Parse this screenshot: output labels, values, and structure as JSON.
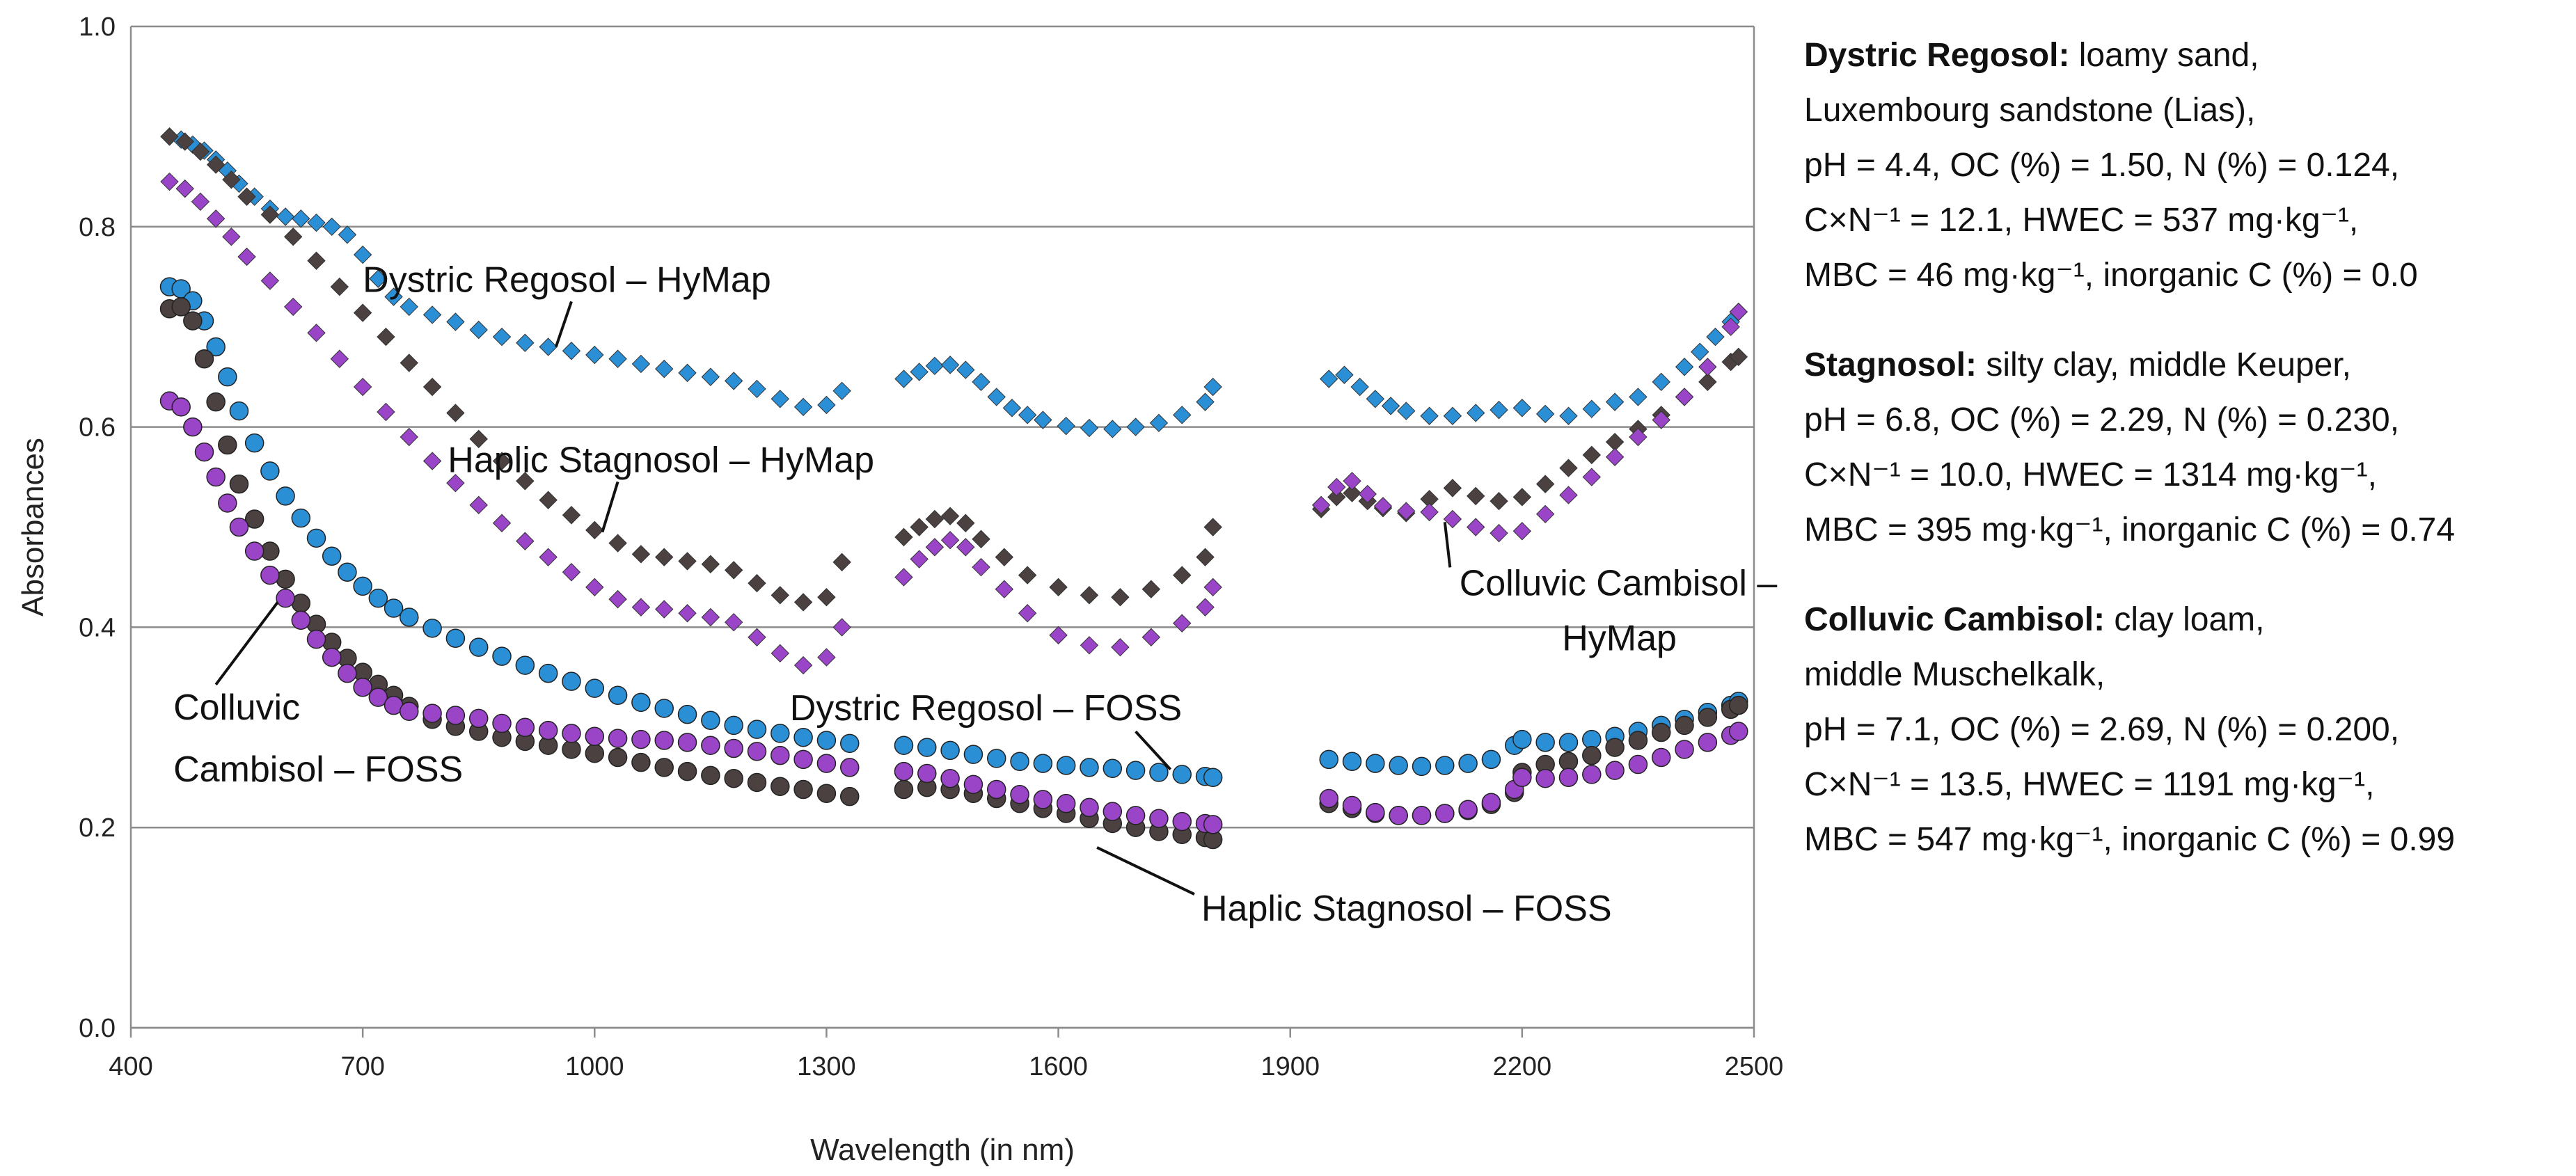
{
  "chart_data": {
    "type": "scatter",
    "xlabel": "Wavelength (in nm)",
    "ylabel": "Absorbances",
    "xlim": [
      400,
      2500
    ],
    "ylim": [
      0.0,
      1.0
    ],
    "x_ticks": [
      "400",
      "700",
      "1000",
      "1300",
      "1600",
      "1900",
      "2200",
      "2500"
    ],
    "y_ticks": [
      "0.0",
      "0.2",
      "0.4",
      "0.6",
      "0.8",
      "1.0"
    ],
    "grid": "horizontal",
    "legend": "none",
    "series": [
      {
        "name": "Dystric Regosol – HyMap",
        "marker": "diamond",
        "color": "#2b8fd6",
        "x": [
          450,
          465,
          480,
          495,
          510,
          525,
          540,
          560,
          580,
          600,
          620,
          640,
          660,
          680,
          700,
          720,
          740,
          760,
          790,
          820,
          850,
          880,
          910,
          940,
          970,
          1000,
          1030,
          1060,
          1090,
          1120,
          1150,
          1180,
          1210,
          1240,
          1270,
          1300,
          1320,
          1400,
          1420,
          1440,
          1460,
          1480,
          1500,
          1520,
          1540,
          1560,
          1580,
          1610,
          1640,
          1670,
          1700,
          1730,
          1760,
          1790,
          1800,
          1950,
          1970,
          1990,
          2010,
          2030,
          2050,
          2080,
          2110,
          2140,
          2170,
          2200,
          2230,
          2260,
          2290,
          2320,
          2350,
          2380,
          2410,
          2430,
          2450,
          2470,
          2480
        ],
        "y": [
          0.89,
          0.887,
          0.882,
          0.876,
          0.867,
          0.856,
          0.843,
          0.83,
          0.818,
          0.81,
          0.808,
          0.804,
          0.8,
          0.792,
          0.772,
          0.748,
          0.73,
          0.72,
          0.712,
          0.705,
          0.697,
          0.69,
          0.684,
          0.68,
          0.676,
          0.672,
          0.668,
          0.663,
          0.658,
          0.654,
          0.65,
          0.646,
          0.638,
          0.628,
          0.62,
          0.622,
          0.636,
          0.648,
          0.655,
          0.661,
          0.662,
          0.657,
          0.645,
          0.63,
          0.619,
          0.612,
          0.607,
          0.601,
          0.599,
          0.598,
          0.6,
          0.604,
          0.612,
          0.625,
          0.64,
          0.648,
          0.652,
          0.64,
          0.628,
          0.621,
          0.616,
          0.611,
          0.611,
          0.614,
          0.617,
          0.619,
          0.613,
          0.611,
          0.618,
          0.625,
          0.63,
          0.645,
          0.66,
          0.675,
          0.69,
          0.705,
          0.715
        ]
      },
      {
        "name": "Haplic Stagnosol – HyMap",
        "marker": "diamond",
        "color": "#4a4140",
        "x": [
          450,
          470,
          490,
          510,
          530,
          550,
          580,
          610,
          640,
          670,
          700,
          730,
          760,
          790,
          820,
          850,
          880,
          910,
          940,
          970,
          1000,
          1030,
          1060,
          1090,
          1120,
          1150,
          1180,
          1210,
          1240,
          1270,
          1300,
          1320,
          1400,
          1420,
          1440,
          1460,
          1480,
          1500,
          1530,
          1560,
          1600,
          1640,
          1680,
          1720,
          1760,
          1790,
          1800,
          1940,
          1960,
          1980,
          2000,
          2020,
          2050,
          2080,
          2110,
          2140,
          2170,
          2200,
          2230,
          2260,
          2290,
          2320,
          2350,
          2380,
          2410,
          2440,
          2470,
          2480
        ],
        "y": [
          0.89,
          0.885,
          0.875,
          0.862,
          0.847,
          0.83,
          0.812,
          0.79,
          0.766,
          0.74,
          0.714,
          0.69,
          0.664,
          0.64,
          0.614,
          0.588,
          0.566,
          0.546,
          0.527,
          0.512,
          0.497,
          0.484,
          0.473,
          0.47,
          0.466,
          0.463,
          0.457,
          0.444,
          0.432,
          0.425,
          0.43,
          0.465,
          0.49,
          0.5,
          0.508,
          0.511,
          0.504,
          0.488,
          0.47,
          0.452,
          0.44,
          0.432,
          0.43,
          0.438,
          0.452,
          0.47,
          0.5,
          0.518,
          0.53,
          0.534,
          0.526,
          0.519,
          0.514,
          0.528,
          0.539,
          0.531,
          0.526,
          0.53,
          0.543,
          0.559,
          0.572,
          0.585,
          0.598,
          0.612,
          0.63,
          0.645,
          0.665,
          0.67
        ]
      },
      {
        "name": "Colluvic Cambisol – HyMap",
        "marker": "diamond",
        "color": "#9a45c8",
        "x": [
          450,
          470,
          490,
          510,
          530,
          550,
          580,
          610,
          640,
          670,
          700,
          730,
          760,
          790,
          820,
          850,
          880,
          910,
          940,
          970,
          1000,
          1030,
          1060,
          1090,
          1120,
          1150,
          1180,
          1210,
          1240,
          1270,
          1300,
          1320,
          1400,
          1420,
          1440,
          1460,
          1480,
          1500,
          1530,
          1560,
          1600,
          1640,
          1680,
          1720,
          1760,
          1790,
          1800,
          1940,
          1960,
          1980,
          2000,
          2020,
          2050,
          2080,
          2110,
          2140,
          2170,
          2200,
          2230,
          2260,
          2290,
          2320,
          2350,
          2380,
          2410,
          2440,
          2470,
          2480
        ],
        "y": [
          0.845,
          0.838,
          0.825,
          0.808,
          0.79,
          0.77,
          0.746,
          0.72,
          0.694,
          0.668,
          0.64,
          0.615,
          0.59,
          0.566,
          0.544,
          0.522,
          0.504,
          0.486,
          0.47,
          0.455,
          0.44,
          0.428,
          0.42,
          0.418,
          0.414,
          0.41,
          0.405,
          0.39,
          0.374,
          0.362,
          0.37,
          0.4,
          0.45,
          0.468,
          0.48,
          0.487,
          0.48,
          0.46,
          0.438,
          0.414,
          0.392,
          0.382,
          0.38,
          0.39,
          0.404,
          0.42,
          0.44,
          0.522,
          0.54,
          0.546,
          0.533,
          0.521,
          0.516,
          0.515,
          0.508,
          0.5,
          0.494,
          0.496,
          0.513,
          0.532,
          0.55,
          0.57,
          0.59,
          0.607,
          0.63,
          0.66,
          0.7,
          0.715
        ]
      },
      {
        "name": "Dystric Regosol – FOSS",
        "marker": "circle",
        "color": "#2b8fd6",
        "x": [
          450,
          465,
          480,
          495,
          510,
          525,
          540,
          560,
          580,
          600,
          620,
          640,
          660,
          680,
          700,
          720,
          740,
          760,
          790,
          820,
          850,
          880,
          910,
          940,
          970,
          1000,
          1030,
          1060,
          1090,
          1120,
          1150,
          1180,
          1210,
          1240,
          1270,
          1300,
          1330,
          1400,
          1430,
          1460,
          1490,
          1520,
          1550,
          1580,
          1610,
          1640,
          1670,
          1700,
          1730,
          1760,
          1790,
          1800,
          1950,
          1980,
          2010,
          2040,
          2070,
          2100,
          2130,
          2160,
          2190,
          2200,
          2230,
          2260,
          2290,
          2320,
          2350,
          2380,
          2410,
          2440,
          2470,
          2480
        ],
        "y": [
          0.74,
          0.738,
          0.726,
          0.706,
          0.68,
          0.65,
          0.616,
          0.584,
          0.556,
          0.531,
          0.509,
          0.489,
          0.471,
          0.455,
          0.441,
          0.429,
          0.419,
          0.41,
          0.399,
          0.389,
          0.38,
          0.371,
          0.362,
          0.354,
          0.346,
          0.339,
          0.332,
          0.325,
          0.319,
          0.313,
          0.307,
          0.302,
          0.298,
          0.294,
          0.29,
          0.287,
          0.284,
          0.282,
          0.28,
          0.277,
          0.273,
          0.269,
          0.266,
          0.264,
          0.262,
          0.26,
          0.259,
          0.257,
          0.255,
          0.253,
          0.251,
          0.25,
          0.268,
          0.266,
          0.264,
          0.262,
          0.261,
          0.262,
          0.264,
          0.268,
          0.282,
          0.288,
          0.285,
          0.285,
          0.288,
          0.291,
          0.296,
          0.302,
          0.308,
          0.315,
          0.322,
          0.326
        ]
      },
      {
        "name": "Haplic Stagnosol – FOSS",
        "marker": "circle",
        "color": "#4a4140",
        "x": [
          450,
          465,
          480,
          495,
          510,
          525,
          540,
          560,
          580,
          600,
          620,
          640,
          660,
          680,
          700,
          720,
          740,
          760,
          790,
          820,
          850,
          880,
          910,
          940,
          970,
          1000,
          1030,
          1060,
          1090,
          1120,
          1150,
          1180,
          1210,
          1240,
          1270,
          1300,
          1330,
          1400,
          1430,
          1460,
          1490,
          1520,
          1550,
          1580,
          1610,
          1640,
          1670,
          1700,
          1730,
          1760,
          1790,
          1800,
          1950,
          1980,
          2010,
          2040,
          2070,
          2100,
          2130,
          2160,
          2190,
          2200,
          2230,
          2260,
          2290,
          2320,
          2350,
          2380,
          2410,
          2440,
          2470,
          2480
        ],
        "y": [
          0.718,
          0.72,
          0.706,
          0.668,
          0.625,
          0.582,
          0.543,
          0.508,
          0.476,
          0.448,
          0.424,
          0.403,
          0.385,
          0.369,
          0.355,
          0.343,
          0.332,
          0.321,
          0.308,
          0.301,
          0.296,
          0.29,
          0.286,
          0.282,
          0.278,
          0.274,
          0.27,
          0.265,
          0.26,
          0.256,
          0.252,
          0.249,
          0.245,
          0.241,
          0.238,
          0.234,
          0.231,
          0.238,
          0.24,
          0.238,
          0.234,
          0.229,
          0.224,
          0.219,
          0.214,
          0.209,
          0.204,
          0.2,
          0.196,
          0.193,
          0.19,
          0.188,
          0.224,
          0.219,
          0.214,
          0.212,
          0.212,
          0.214,
          0.217,
          0.223,
          0.235,
          0.255,
          0.263,
          0.266,
          0.272,
          0.28,
          0.287,
          0.295,
          0.302,
          0.31,
          0.318,
          0.322
        ]
      },
      {
        "name": "Colluvic Cambisol – FOSS",
        "marker": "circle",
        "color": "#9a45c8",
        "x": [
          450,
          465,
          480,
          495,
          510,
          525,
          540,
          560,
          580,
          600,
          620,
          640,
          660,
          680,
          700,
          720,
          740,
          760,
          790,
          820,
          850,
          880,
          910,
          940,
          970,
          1000,
          1030,
          1060,
          1090,
          1120,
          1150,
          1180,
          1210,
          1240,
          1270,
          1300,
          1330,
          1400,
          1430,
          1460,
          1490,
          1520,
          1550,
          1580,
          1610,
          1640,
          1670,
          1700,
          1730,
          1760,
          1790,
          1800,
          1950,
          1980,
          2010,
          2040,
          2070,
          2100,
          2130,
          2160,
          2190,
          2200,
          2230,
          2260,
          2290,
          2320,
          2350,
          2380,
          2410,
          2440,
          2470,
          2480
        ],
        "y": [
          0.626,
          0.62,
          0.6,
          0.575,
          0.55,
          0.524,
          0.5,
          0.476,
          0.452,
          0.429,
          0.407,
          0.388,
          0.37,
          0.354,
          0.34,
          0.33,
          0.322,
          0.316,
          0.314,
          0.312,
          0.309,
          0.304,
          0.3,
          0.297,
          0.294,
          0.291,
          0.289,
          0.288,
          0.287,
          0.285,
          0.282,
          0.279,
          0.276,
          0.272,
          0.268,
          0.264,
          0.26,
          0.256,
          0.254,
          0.249,
          0.243,
          0.238,
          0.233,
          0.228,
          0.224,
          0.22,
          0.216,
          0.212,
          0.209,
          0.206,
          0.204,
          0.203,
          0.229,
          0.222,
          0.215,
          0.212,
          0.212,
          0.214,
          0.218,
          0.225,
          0.238,
          0.25,
          0.249,
          0.25,
          0.253,
          0.257,
          0.263,
          0.27,
          0.278,
          0.285,
          0.292,
          0.296
        ]
      }
    ],
    "annotations": [
      {
        "text": "Dystric Regosol – HyMap",
        "x": 700,
        "y": 0.735,
        "anchor": "start",
        "pointer_to": [
          950,
          0.68
        ]
      },
      {
        "text": "Haplic Stagnosol – HyMap",
        "x": 810,
        "y": 0.555,
        "anchor": "start",
        "pointer_to": [
          1010,
          0.495
        ]
      },
      {
        "text": "Colluvic Cambisol –",
        "x": 2530,
        "y": 0.432,
        "anchor": "end",
        "pointer_to": [
          2100,
          0.505
        ]
      },
      {
        "text": "HyMap",
        "x": 2400,
        "y": 0.377,
        "anchor": "end"
      },
      {
        "text": "Dystric Regosol – FOSS",
        "x": 1760,
        "y": 0.307,
        "anchor": "end",
        "pointer_to": [
          1745,
          0.258
        ]
      },
      {
        "text": "Colluvic",
        "x": 455,
        "y": 0.308,
        "anchor": "start",
        "pointer_to": [
          590,
          0.425
        ]
      },
      {
        "text": "Cambisol – FOSS",
        "x": 455,
        "y": 0.246,
        "anchor": "start"
      },
      {
        "text": "Haplic Stagnosol – FOSS",
        "x": 1785,
        "y": 0.107,
        "anchor": "start",
        "pointer_to": [
          1650,
          0.18
        ]
      }
    ]
  },
  "soil_info": [
    {
      "name": "Dystric Regosol:",
      "lines": [
        "loamy sand,",
        "Luxembourg sandstone (Lias),",
        "pH = 4.4, OC (%) = 1.50, N (%) = 0.124,",
        "C×N⁻¹ = 12.1, HWEC = 537 mg·kg⁻¹,",
        "MBC = 46 mg·kg⁻¹, inorganic C (%) = 0.0"
      ]
    },
    {
      "name": "Stagnosol:",
      "lines": [
        "silty clay, middle Keuper,",
        "pH = 6.8, OC (%) = 2.29, N (%) = 0.230,",
        "C×N⁻¹ = 10.0, HWEC = 1314 mg·kg⁻¹,",
        "MBC = 395 mg·kg⁻¹, inorganic C (%) = 0.74"
      ]
    },
    {
      "name": "Colluvic Cambisol:",
      "lines": [
        "clay loam,",
        "middle Muschelkalk,",
        "pH = 7.1, OC (%) = 2.69, N (%) = 0.200,",
        "C×N⁻¹ = 13.5, HWEC = 1191 mg·kg⁻¹,",
        "MBC = 547 mg·kg⁻¹, inorganic C (%) = 0.99"
      ]
    }
  ]
}
